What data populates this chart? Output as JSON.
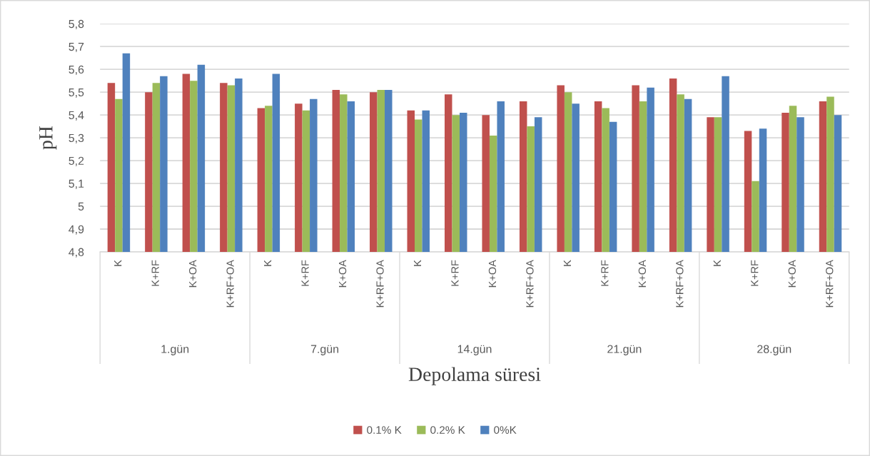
{
  "chart_data": {
    "type": "bar",
    "xlabel": "Depolama süresi",
    "ylabel": "pH",
    "categories": [
      "K",
      "K+RF",
      "K+OA",
      "K+RF+OA",
      "K",
      "K+RF",
      "K+OA",
      "K+RF+OA",
      "K",
      "K+RF",
      "K+OA",
      "K+RF+OA",
      "K",
      "K+RF",
      "K+OA",
      "K+RF+OA",
      "K",
      "K+RF",
      "K+OA",
      "K+RF+OA"
    ],
    "annotations": [
      "1.gün",
      "7.gün",
      "14.gün",
      "21.gün",
      "28.gün"
    ],
    "series": [
      {
        "name": "0.1% K",
        "color": "#c0504d",
        "values": [
          5.54,
          5.5,
          5.58,
          5.54,
          5.43,
          5.45,
          5.51,
          5.5,
          5.42,
          5.49,
          5.4,
          5.46,
          5.53,
          5.46,
          5.53,
          5.56,
          5.39,
          5.33,
          5.41,
          5.46
        ]
      },
      {
        "name": "0.2% K",
        "color": "#9bbb59",
        "values": [
          5.47,
          5.54,
          5.55,
          5.53,
          5.44,
          5.42,
          5.49,
          5.51,
          5.38,
          5.4,
          5.31,
          5.35,
          5.5,
          5.43,
          5.46,
          5.49,
          5.39,
          5.11,
          5.44,
          5.48
        ]
      },
      {
        "name": "0%K",
        "color": "#4f81bd",
        "values": [
          5.67,
          5.57,
          5.62,
          5.56,
          5.58,
          5.47,
          5.46,
          5.51,
          5.42,
          5.41,
          5.46,
          5.39,
          5.45,
          5.37,
          5.52,
          5.47,
          5.57,
          5.34,
          5.39,
          5.4
        ]
      }
    ],
    "ylim": [
      4.8,
      5.8
    ],
    "yticks": [
      {
        "value": 4.8,
        "label": "4,8"
      },
      {
        "value": 4.9,
        "label": "4,9"
      },
      5,
      {
        "value": 5.1,
        "label": "5,1"
      },
      {
        "value": 5.2,
        "label": "5,2"
      },
      {
        "value": 5.3,
        "label": "5,3"
      },
      {
        "value": 5.4,
        "label": "5,4"
      },
      {
        "value": 5.5,
        "label": "5,5"
      },
      {
        "value": 5.6,
        "label": "5,6"
      },
      {
        "value": 5.7,
        "label": "5,7"
      },
      {
        "value": 5.8,
        "label": "5,8"
      }
    ],
    "grid": "y",
    "legend": "bottom"
  }
}
